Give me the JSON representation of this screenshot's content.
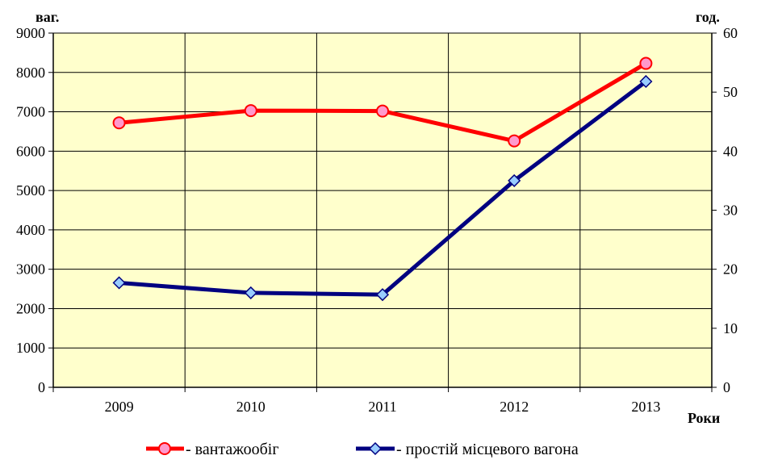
{
  "chart_data": {
    "type": "line",
    "x_axis": {
      "categories": [
        "2009",
        "2010",
        "2011",
        "2012",
        "2013"
      ],
      "label": "Роки"
    },
    "y_left": {
      "label": "ваг.",
      "range": [
        0,
        9000
      ],
      "ticks": [
        "0",
        "1000",
        "2000",
        "3000",
        "4000",
        "5000",
        "6000",
        "7000",
        "8000",
        "9000"
      ]
    },
    "y_right": {
      "label": "год.",
      "range": [
        0,
        60
      ],
      "ticks": [
        "0",
        "10",
        "20",
        "30",
        "40",
        "50",
        "60"
      ]
    },
    "grid": true,
    "legend_position": "bottom",
    "series": [
      {
        "name": "- вантажообіг",
        "axis": "left",
        "values": [
          6720,
          7030,
          7020,
          6260,
          8230
        ],
        "color": "#ff0000",
        "marker": "circle",
        "marker_fill": "#ff99cc"
      },
      {
        "name": "- простій місцевого вагона",
        "axis": "right",
        "values": [
          17.7,
          16.0,
          15.7,
          35.0,
          51.8
        ],
        "color": "#000080",
        "marker": "diamond",
        "marker_fill": "#99ccff"
      }
    ],
    "colors": {
      "plot_background": "#ffffcc",
      "grid": "#000000"
    }
  }
}
